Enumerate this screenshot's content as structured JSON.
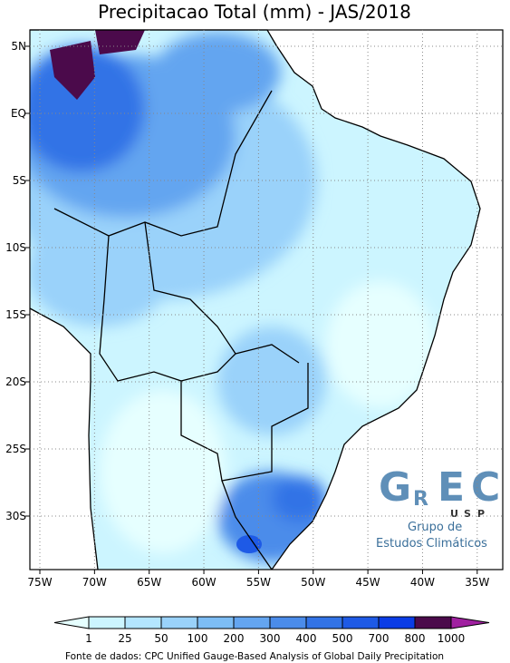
{
  "map": {
    "title": "Precipitacao Total (mm) - JAS/2018",
    "lon_ticks": [
      {
        "value": -75,
        "label": "75W"
      },
      {
        "value": -70,
        "label": "70W"
      },
      {
        "value": -65,
        "label": "65W"
      },
      {
        "value": -60,
        "label": "60W"
      },
      {
        "value": -55,
        "label": "55W"
      },
      {
        "value": -50,
        "label": "50W"
      },
      {
        "value": -45,
        "label": "45W"
      },
      {
        "value": -40,
        "label": "40W"
      },
      {
        "value": -35,
        "label": "35W"
      }
    ],
    "lat_ticks": [
      {
        "value": 5,
        "label": "5N"
      },
      {
        "value": 0,
        "label": "EQ"
      },
      {
        "value": -5,
        "label": "5S"
      },
      {
        "value": -10,
        "label": "10S"
      },
      {
        "value": -15,
        "label": "15S"
      },
      {
        "value": -20,
        "label": "20S"
      },
      {
        "value": -25,
        "label": "25S"
      },
      {
        "value": -30,
        "label": "30S"
      }
    ],
    "colorbar": {
      "labels": [
        "1",
        "25",
        "50",
        "100",
        "200",
        "300",
        "400",
        "500",
        "700",
        "800",
        "1000"
      ],
      "colors": [
        "#ccf5ff",
        "#b4e6ff",
        "#9ad2fa",
        "#7dbdf5",
        "#64a5f0",
        "#4b8cea",
        "#3273e6",
        "#1e5ae6",
        "#0a3ce6",
        "#4b0a4b"
      ],
      "under_color": "#e6ffff",
      "over_color": "#a020a0"
    },
    "logo": {
      "letters": [
        "G",
        "R",
        "E",
        "C"
      ],
      "usp": [
        "U",
        "S",
        "P"
      ],
      "line1": "Grupo de",
      "line2": "Estudos Climáticos"
    },
    "footer": "Fonte de dados: CPC Unified Gauge-Based Analysis of Global Daily Precipitation"
  }
}
